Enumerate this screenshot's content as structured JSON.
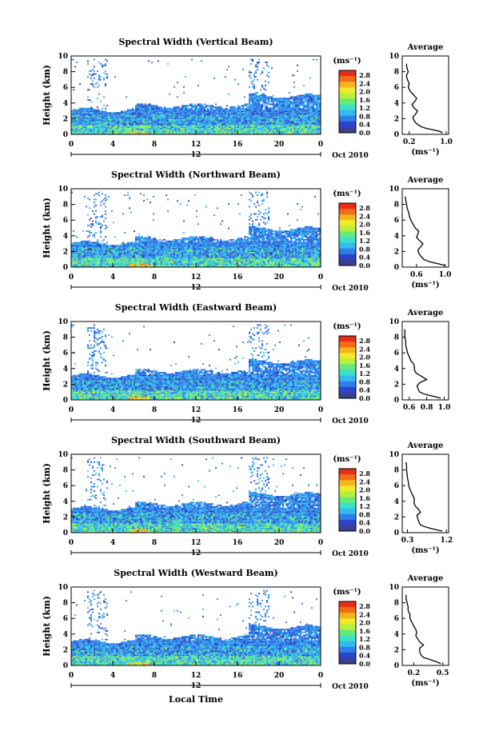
{
  "figure": {
    "xlabel": "Local Time",
    "date_label": "Oct 2010",
    "unit_label": "(ms⁻¹)",
    "avg_title": "Average",
    "colorbar": {
      "ticks": [
        "2.8",
        "2.4",
        "2.0",
        "1.6",
        "1.2",
        "0.8",
        "0.4",
        "0.0"
      ],
      "range": [
        0.0,
        3.0
      ],
      "colors": [
        "#3a3f8f",
        "#2b45c8",
        "#2f7fe8",
        "#35b9f0",
        "#3ae0c8",
        "#66ea7a",
        "#b7ef3c",
        "#f0ea2a",
        "#f7b21e",
        "#f46a17",
        "#e62d17"
      ]
    }
  },
  "chart_data": [
    {
      "type": "heatmap",
      "title": "Spectral Width (Vertical Beam)",
      "ylabel": "Height (km)",
      "x_ticks": [
        "0",
        "4",
        "8",
        "12",
        "16",
        "20",
        "0"
      ],
      "day_tick": "12",
      "xlim": [
        0,
        24
      ],
      "ylim": [
        0,
        10
      ],
      "y_ticks": [
        "0",
        "2",
        "4",
        "6",
        "8",
        "10"
      ],
      "average": {
        "xlabel": "(ms⁻¹)",
        "x_ticks": [
          "0.2",
          "1.0"
        ],
        "xlim": [
          0.05,
          1.05
        ],
        "xtick_values": [
          0.2,
          1.0
        ],
        "height": [
          0.2,
          0.4,
          0.6,
          0.8,
          1.0,
          1.4,
          1.8,
          2.2,
          2.6,
          3.0,
          3.4,
          3.8,
          4.2,
          4.6,
          5.0,
          5.5,
          6.0,
          6.5,
          7.0,
          7.5,
          8.0,
          8.5,
          9.0
        ],
        "values": [
          0.92,
          0.85,
          0.7,
          0.55,
          0.45,
          0.35,
          0.3,
          0.28,
          0.34,
          0.38,
          0.3,
          0.26,
          0.32,
          0.36,
          0.3,
          0.22,
          0.18,
          0.2,
          0.16,
          0.14,
          0.18,
          0.15,
          0.14
        ]
      }
    },
    {
      "type": "heatmap",
      "title": "Spectral Width (Northward Beam)",
      "ylabel": "Height (km)",
      "x_ticks": [
        "0",
        "4",
        "8",
        "12",
        "16",
        "20",
        "0"
      ],
      "day_tick": "12",
      "xlim": [
        0,
        24
      ],
      "ylim": [
        0,
        10
      ],
      "y_ticks": [
        "0",
        "2",
        "4",
        "6",
        "8",
        "10"
      ],
      "average": {
        "xlabel": "(ms⁻¹)",
        "x_ticks": [
          "0.6",
          "1.0"
        ],
        "xlim": [
          0.4,
          1.05
        ],
        "xtick_values": [
          0.6,
          1.0
        ],
        "height": [
          0.2,
          0.4,
          0.6,
          0.8,
          1.0,
          1.4,
          1.8,
          2.2,
          2.6,
          3.0,
          3.4,
          3.8,
          4.2,
          4.6,
          5.0,
          5.5,
          6.0,
          6.5,
          7.0,
          7.5,
          8.0,
          8.5,
          9.0
        ],
        "values": [
          1.0,
          0.92,
          0.82,
          0.75,
          0.7,
          0.66,
          0.63,
          0.62,
          0.66,
          0.69,
          0.64,
          0.6,
          0.62,
          0.63,
          0.58,
          0.55,
          0.52,
          0.5,
          0.49,
          0.47,
          0.46,
          0.45,
          0.44
        ]
      }
    },
    {
      "type": "heatmap",
      "title": "Spectral Width (Eastward Beam)",
      "ylabel": "Height (km)",
      "x_ticks": [
        "0",
        "4",
        "8",
        "12",
        "16",
        "20",
        "0"
      ],
      "day_tick": "12",
      "xlim": [
        0,
        24
      ],
      "ylim": [
        0,
        10
      ],
      "y_ticks": [
        "0",
        "2",
        "4",
        "6",
        "8",
        "10"
      ],
      "average": {
        "xlabel": "",
        "x_ticks": [
          "0.6",
          "0.8",
          "1.0"
        ],
        "xlim": [
          0.52,
          1.05
        ],
        "xtick_values": [
          0.6,
          0.8,
          1.0
        ],
        "height": [
          0.2,
          0.4,
          0.6,
          0.8,
          1.0,
          1.4,
          1.8,
          2.2,
          2.6,
          3.0,
          3.4,
          3.8,
          4.2,
          4.6,
          5.0,
          5.5,
          6.0,
          6.5,
          7.0,
          7.5,
          8.0,
          8.5,
          9.0
        ],
        "values": [
          0.96,
          0.9,
          0.82,
          0.76,
          0.72,
          0.7,
          0.69,
          0.72,
          0.8,
          0.74,
          0.68,
          0.66,
          0.66,
          0.65,
          0.62,
          0.6,
          0.58,
          0.57,
          0.56,
          0.56,
          0.55,
          0.55,
          0.55
        ]
      }
    },
    {
      "type": "heatmap",
      "title": "Spectral Width (Southward Beam)",
      "ylabel": "Height (km)",
      "x_ticks": [
        "0",
        "4",
        "8",
        "12",
        "16",
        "20",
        "0"
      ],
      "day_tick": "12",
      "xlim": [
        0,
        24
      ],
      "ylim": [
        0,
        10
      ],
      "y_ticks": [
        "0",
        "2",
        "4",
        "6",
        "8",
        "10"
      ],
      "average": {
        "xlabel": "(ms⁻¹)",
        "x_ticks": [
          "0.3",
          "1.2"
        ],
        "xlim": [
          0.18,
          1.25
        ],
        "xtick_values": [
          0.3,
          1.2
        ],
        "height": [
          0.2,
          0.4,
          0.6,
          0.8,
          1.0,
          1.4,
          1.8,
          2.2,
          2.6,
          3.0,
          3.4,
          3.8,
          4.2,
          4.6,
          5.0,
          5.5,
          6.0,
          6.5,
          7.0,
          7.5,
          8.0,
          8.5,
          9.0
        ],
        "values": [
          1.1,
          0.95,
          0.8,
          0.68,
          0.6,
          0.56,
          0.54,
          0.52,
          0.6,
          0.55,
          0.48,
          0.45,
          0.46,
          0.44,
          0.4,
          0.36,
          0.33,
          0.32,
          0.3,
          0.29,
          0.28,
          0.28,
          0.27
        ]
      }
    },
    {
      "type": "heatmap",
      "title": "Spectral Width (Westward Beam)",
      "ylabel": "Height (km)",
      "x_ticks": [
        "0",
        "4",
        "8",
        "12",
        "16",
        "20",
        "0"
      ],
      "day_tick": "12",
      "xlim": [
        0,
        24
      ],
      "ylim": [
        0,
        10
      ],
      "y_ticks": [
        "0",
        "2",
        "4",
        "6",
        "8",
        "10"
      ],
      "average": {
        "xlabel": "(ms⁻¹)",
        "x_ticks": [
          "0.2",
          "0.5"
        ],
        "xlim": [
          0.08,
          0.56
        ],
        "xtick_values": [
          0.2,
          0.5
        ],
        "height": [
          0.2,
          0.4,
          0.6,
          0.8,
          1.0,
          1.4,
          1.8,
          2.2,
          2.6,
          3.0,
          3.4,
          3.8,
          4.2,
          4.6,
          5.0,
          5.5,
          6.0,
          6.5,
          7.0,
          7.5,
          8.0,
          8.5,
          9.0
        ],
        "values": [
          0.48,
          0.45,
          0.4,
          0.36,
          0.3,
          0.27,
          0.26,
          0.26,
          0.3,
          0.26,
          0.24,
          0.22,
          0.23,
          0.22,
          0.2,
          0.18,
          0.16,
          0.16,
          0.14,
          0.14,
          0.13,
          0.12,
          0.12
        ]
      }
    }
  ]
}
